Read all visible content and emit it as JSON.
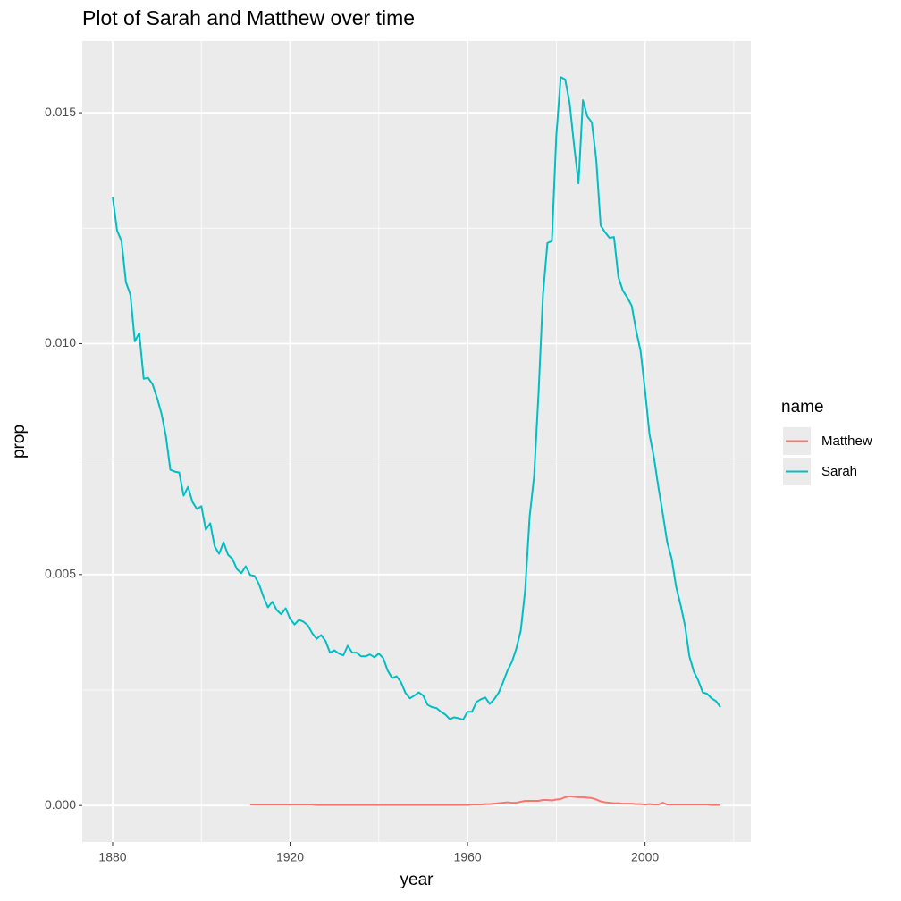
{
  "chart_data": {
    "type": "line",
    "title": "Plot of Sarah and Matthew over time",
    "x_label": "year",
    "y_label": "prop",
    "legend_title": "name",
    "legend_position": "right",
    "grid": true,
    "xlim": [
      1873.15,
      2023.85
    ],
    "xticks": [
      1880,
      1920,
      1960,
      2000
    ],
    "ylim": [
      -0.00079,
      0.01655
    ],
    "yticks": [
      {
        "value": 0,
        "label": "0.000"
      },
      0.005,
      {
        "value": 0.01,
        "label": "0.010"
      },
      0.015
    ],
    "x": [
      1880,
      1881,
      1882,
      1883,
      1884,
      1885,
      1886,
      1887,
      1888,
      1889,
      1890,
      1891,
      1892,
      1893,
      1894,
      1895,
      1896,
      1897,
      1898,
      1899,
      1900,
      1901,
      1902,
      1903,
      1904,
      1905,
      1906,
      1907,
      1908,
      1909,
      1910,
      1911,
      1912,
      1913,
      1914,
      1915,
      1916,
      1917,
      1918,
      1919,
      1920,
      1921,
      1922,
      1923,
      1924,
      1925,
      1926,
      1927,
      1928,
      1929,
      1930,
      1931,
      1932,
      1933,
      1934,
      1935,
      1936,
      1937,
      1938,
      1939,
      1940,
      1941,
      1942,
      1943,
      1944,
      1945,
      1946,
      1947,
      1948,
      1949,
      1950,
      1951,
      1952,
      1953,
      1954,
      1955,
      1956,
      1957,
      1958,
      1959,
      1960,
      1961,
      1962,
      1963,
      1964,
      1965,
      1966,
      1967,
      1968,
      1969,
      1970,
      1971,
      1972,
      1973,
      1974,
      1975,
      1976,
      1977,
      1978,
      1979,
      1980,
      1981,
      1982,
      1983,
      1984,
      1985,
      1986,
      1987,
      1988,
      1989,
      1990,
      1991,
      1992,
      1993,
      1994,
      1995,
      1996,
      1997,
      1998,
      1999,
      2000,
      2001,
      2002,
      2003,
      2004,
      2005,
      2006,
      2007,
      2008,
      2009,
      2010,
      2011,
      2012,
      2013,
      2014,
      2015,
      2016,
      2017
    ],
    "series": [
      {
        "name": "Matthew",
        "color": "#f8766d",
        "values": [
          null,
          null,
          null,
          null,
          null,
          null,
          null,
          null,
          null,
          null,
          null,
          null,
          null,
          null,
          null,
          null,
          null,
          null,
          null,
          null,
          null,
          null,
          null,
          null,
          null,
          null,
          null,
          null,
          null,
          null,
          null,
          2e-05,
          2e-05,
          2e-05,
          2e-05,
          2e-05,
          2e-05,
          2e-05,
          2e-05,
          2e-05,
          2e-05,
          2e-05,
          2e-05,
          2e-05,
          2e-05,
          2e-05,
          1e-05,
          1e-05,
          1e-05,
          1e-05,
          1e-05,
          1e-05,
          1e-05,
          1e-05,
          1e-05,
          1e-05,
          1e-05,
          1e-05,
          1e-05,
          1e-05,
          1e-05,
          1e-05,
          1e-05,
          1e-05,
          1e-05,
          1e-05,
          1e-05,
          1e-05,
          1e-05,
          1e-05,
          1e-05,
          1e-05,
          1e-05,
          1e-05,
          1e-05,
          1e-05,
          1e-05,
          1e-05,
          1e-05,
          1e-05,
          1e-05,
          2e-05,
          2e-05,
          2e-05,
          3e-05,
          3e-05,
          4e-05,
          5e-05,
          6e-05,
          7e-05,
          6e-05,
          6e-05,
          8e-05,
          0.0001,
          0.0001,
          0.0001,
          0.0001,
          0.00012,
          0.00012,
          0.00011,
          0.00013,
          0.00014,
          0.00018,
          0.0002,
          0.00019,
          0.00018,
          0.00018,
          0.00017,
          0.00016,
          0.00013,
          9e-05,
          7e-05,
          6e-05,
          5e-05,
          5e-05,
          4e-05,
          4e-05,
          4e-05,
          3e-05,
          3e-05,
          2e-05,
          3e-05,
          2e-05,
          2e-05,
          6e-05,
          2e-05,
          2e-05,
          2e-05,
          2e-05,
          2e-05,
          2e-05,
          2e-05,
          2e-05,
          2e-05,
          2e-05,
          1e-05,
          1e-05,
          1e-05
        ]
      },
      {
        "name": "Sarah",
        "color": "#00bfc4",
        "values": [
          0.01318,
          0.01245,
          0.01222,
          0.01133,
          0.01106,
          0.01005,
          0.01023,
          0.00924,
          0.00926,
          0.00912,
          0.00883,
          0.00849,
          0.008,
          0.00727,
          0.00723,
          0.00721,
          0.00671,
          0.0069,
          0.00657,
          0.00642,
          0.00648,
          0.00597,
          0.00611,
          0.00561,
          0.00545,
          0.0057,
          0.00543,
          0.00534,
          0.00512,
          0.00503,
          0.00518,
          0.00499,
          0.00497,
          0.00479,
          0.00452,
          0.00429,
          0.00441,
          0.00423,
          0.00414,
          0.00427,
          0.00404,
          0.00392,
          0.00402,
          0.00398,
          0.0039,
          0.00373,
          0.00361,
          0.00369,
          0.00356,
          0.00331,
          0.00336,
          0.00329,
          0.00325,
          0.00346,
          0.00331,
          0.00331,
          0.00323,
          0.00323,
          0.00327,
          0.00321,
          0.00329,
          0.00319,
          0.00292,
          0.00276,
          0.0028,
          0.00267,
          0.00244,
          0.00232,
          0.00238,
          0.00245,
          0.00238,
          0.00218,
          0.00213,
          0.00211,
          0.00203,
          0.00197,
          0.00187,
          0.00191,
          0.00189,
          0.00186,
          0.00203,
          0.00203,
          0.00224,
          0.0023,
          0.00234,
          0.0022,
          0.0023,
          0.00244,
          0.00267,
          0.00292,
          0.00311,
          0.0034,
          0.00379,
          0.00468,
          0.00626,
          0.00713,
          0.00893,
          0.01106,
          0.01218,
          0.01222,
          0.0145,
          0.01577,
          0.01572,
          0.01521,
          0.0143,
          0.01347,
          0.01527,
          0.01492,
          0.01479,
          0.01399,
          0.01256,
          0.01241,
          0.01229,
          0.01231,
          0.01144,
          0.01115,
          0.011,
          0.01082,
          0.01028,
          0.00984,
          0.00899,
          0.00804,
          0.00754,
          0.0069,
          0.00632,
          0.0057,
          0.00535,
          0.00474,
          0.00435,
          0.0039,
          0.00323,
          0.0029,
          0.00271,
          0.00245,
          0.00242,
          0.00232,
          0.00226,
          0.00213
        ]
      }
    ]
  }
}
